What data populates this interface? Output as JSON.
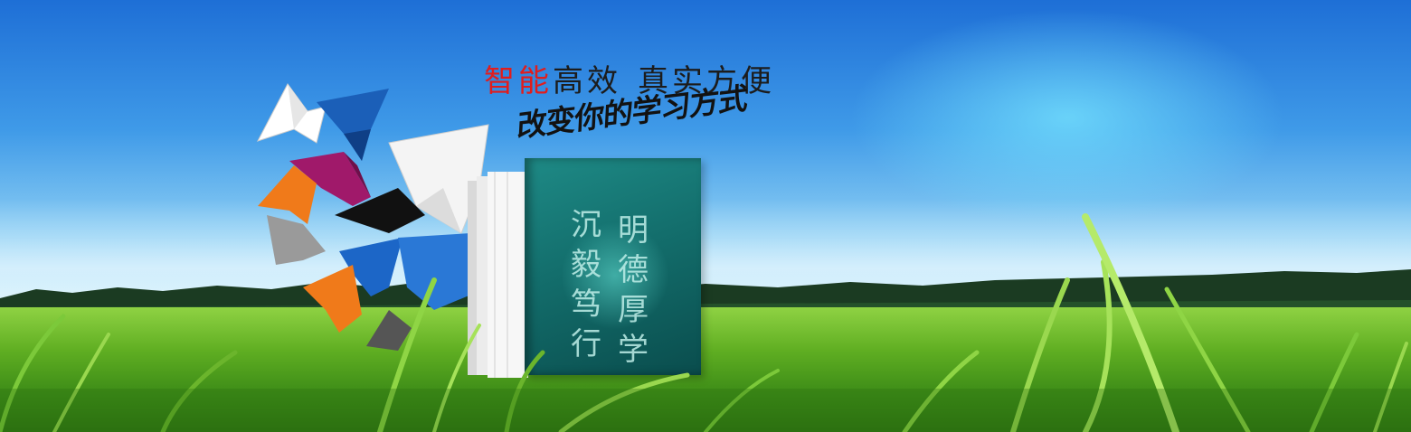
{
  "banner": {
    "slogan": {
      "red_part": "智能",
      "black_part_1": "高效",
      "black_part_2": "真实方便"
    },
    "tagline": "改变你的学习方式",
    "book": {
      "column_right": [
        "明",
        "德",
        "厚",
        "学"
      ],
      "column_left": [
        "沉",
        "毅",
        "笃",
        "行"
      ]
    }
  },
  "colors": {
    "sky_top": "#1e6fd6",
    "slogan_red": "#e11d1d",
    "book_cover": "#136e6c",
    "grass": "#5fae22"
  },
  "icons": [
    "origami-bird-icon"
  ]
}
